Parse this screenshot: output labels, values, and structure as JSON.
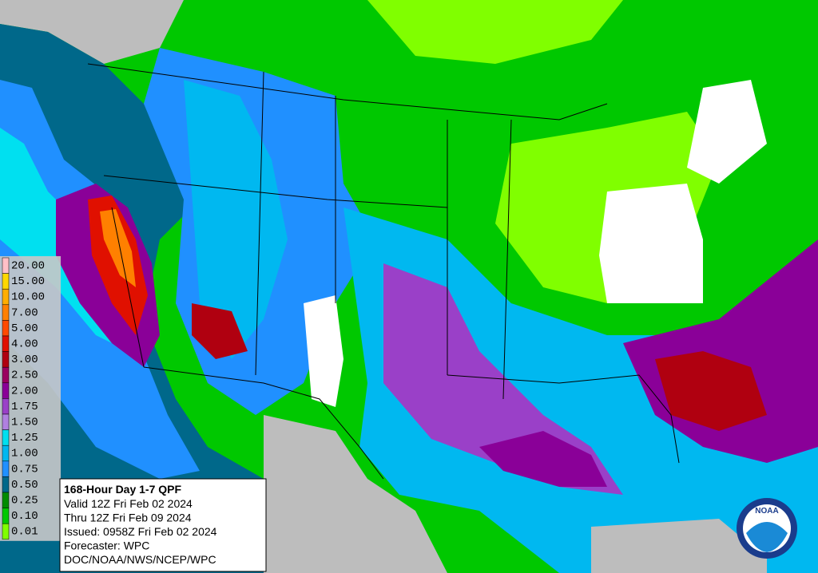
{
  "legend": {
    "items": [
      {
        "label": "20.00",
        "color": "#ffc0c8"
      },
      {
        "label": "15.00",
        "color": "#ffd800"
      },
      {
        "label": "10.00",
        "color": "#ffae00"
      },
      {
        "label": "7.00",
        "color": "#ff8000"
      },
      {
        "label": "5.00",
        "color": "#ff4a00"
      },
      {
        "label": "4.00",
        "color": "#e01000"
      },
      {
        "label": "3.00",
        "color": "#b00010"
      },
      {
        "label": "2.50",
        "color": "#9a0060"
      },
      {
        "label": "2.00",
        "color": "#8a0098"
      },
      {
        "label": "1.75",
        "color": "#9a40c8"
      },
      {
        "label": "1.50",
        "color": "#b080e0"
      },
      {
        "label": "1.25",
        "color": "#00e0f0"
      },
      {
        "label": "1.00",
        "color": "#00b8f0"
      },
      {
        "label": "0.75",
        "color": "#2090ff"
      },
      {
        "label": "0.50",
        "color": "#00688a"
      },
      {
        "label": "0.25",
        "color": "#008c00"
      },
      {
        "label": "0.10",
        "color": "#00c800"
      },
      {
        "label": "0.01",
        "color": "#80ff00"
      }
    ]
  },
  "info": {
    "title": "168-Hour Day 1-7 QPF",
    "lines": [
      "Valid 12Z Fri Feb 02 2024",
      "Thru 12Z Fri Feb 09 2024",
      "Issued: 0958Z Fri Feb 02 2024",
      "Forecaster: WPC",
      "DOC/NOAA/NWS/NCEP/WPC"
    ]
  },
  "logo": {
    "text": "NOAA"
  }
}
